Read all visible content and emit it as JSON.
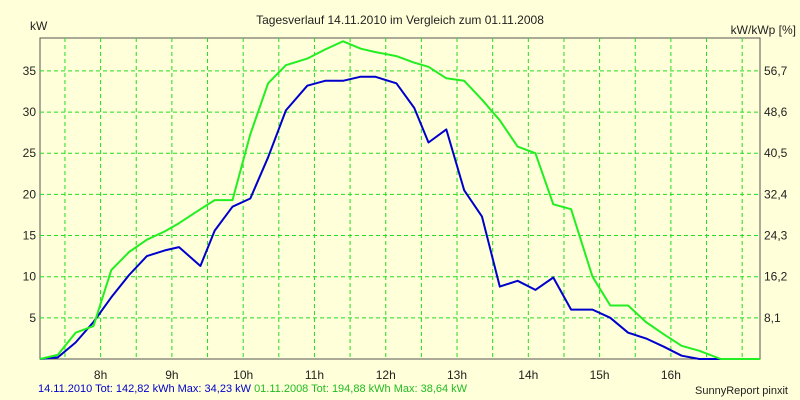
{
  "chart_data": {
    "type": "line",
    "title": "Tagesverlauf 14.11.2010 im Vergleich zum 01.11.2008",
    "ylabel_left": "kW",
    "ylabel_right": "kW/kWp [%]",
    "x_ticks": [
      "8h",
      "9h",
      "10h",
      "11h",
      "12h",
      "13h",
      "14h",
      "15h",
      "16h"
    ],
    "xlim": [
      7.15,
      17.25
    ],
    "ylim": [
      0,
      39
    ],
    "y_ticks_left": [
      5,
      10,
      15,
      20,
      25,
      30,
      35
    ],
    "y_ticks_right": [
      "8,1",
      "16,2",
      "24,3",
      "32,4",
      "40,5",
      "48,6",
      "56,7"
    ],
    "grid": true,
    "series": [
      {
        "name": "14.11.2010",
        "color": "#0000cc",
        "x": [
          7.15,
          7.4,
          7.65,
          7.9,
          8.15,
          8.4,
          8.65,
          8.9,
          9.1,
          9.4,
          9.6,
          9.85,
          10.1,
          10.35,
          10.6,
          10.9,
          11.15,
          11.4,
          11.65,
          11.85,
          12.15,
          12.4,
          12.6,
          12.85,
          13.1,
          13.35,
          13.6,
          13.85,
          14.1,
          14.35,
          14.6,
          14.9,
          15.15,
          15.4,
          15.65,
          15.9,
          16.15,
          16.4,
          16.7,
          17.0,
          17.25
        ],
        "values": [
          0,
          0.2,
          2,
          4.5,
          7.5,
          10.2,
          12.5,
          13.2,
          13.6,
          11.3,
          15.6,
          18.5,
          19.5,
          24.5,
          30.2,
          33.2,
          33.8,
          33.8,
          34.3,
          34.3,
          33.5,
          30.5,
          26.3,
          27.9,
          20.5,
          17.3,
          8.8,
          9.5,
          8.4,
          9.9,
          6.0,
          6.0,
          5.0,
          3.2,
          2.5,
          1.5,
          0.4,
          0,
          0,
          0,
          0
        ]
      },
      {
        "name": "01.11.2008",
        "color": "#22ee22",
        "x": [
          7.15,
          7.4,
          7.65,
          7.9,
          8.15,
          8.4,
          8.65,
          8.9,
          9.1,
          9.4,
          9.6,
          9.85,
          10.1,
          10.35,
          10.6,
          10.9,
          11.15,
          11.4,
          11.65,
          11.85,
          12.15,
          12.4,
          12.6,
          12.85,
          13.1,
          13.35,
          13.6,
          13.85,
          14.1,
          14.35,
          14.6,
          14.9,
          15.15,
          15.4,
          15.65,
          15.9,
          16.15,
          16.4,
          16.7,
          17.0,
          17.25
        ],
        "values": [
          0,
          0.5,
          3.2,
          4,
          10.8,
          13,
          14.5,
          15.5,
          16.5,
          18.2,
          19.3,
          19.3,
          27.3,
          33.5,
          35.7,
          36.5,
          37.6,
          38.6,
          37.7,
          37.3,
          36.8,
          36.0,
          35.5,
          34.1,
          33.8,
          31.5,
          29,
          25.8,
          25,
          18.8,
          18.2,
          10,
          6.5,
          6.5,
          4.5,
          3,
          1.6,
          1,
          0,
          0,
          0
        ]
      }
    ]
  },
  "footer": {
    "blue_text": "14.11.2010 Tot: 142,82 kWh Max: 34,23 kW",
    "green_text": "01.11.2008 Tot: 194,88 kWh Max: 38,64 kW",
    "brand": "SunnyReport pinxit",
    "blue_color": "#0000cc",
    "green_color": "#22bb22"
  }
}
